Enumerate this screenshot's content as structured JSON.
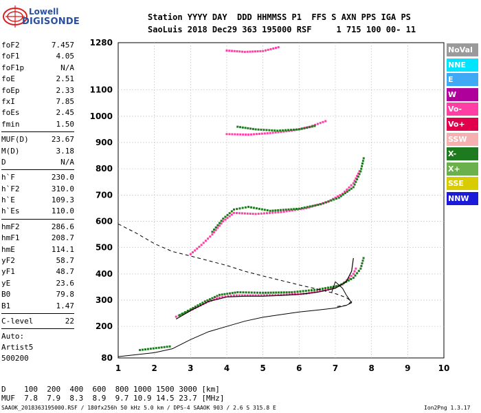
{
  "logo": {
    "line1": "Lowell",
    "line2": "DIGISONDE"
  },
  "header": {
    "line1": "Station YYYY DAY  DDD HHMMSS P1  FFS S AXN PPS IGA PS",
    "line2": "SaoLuis 2018 Dec29 363 195000 RSF     1 715 100 00- 11"
  },
  "params_group1": [
    {
      "k": "foF2",
      "v": "7.457"
    },
    {
      "k": "foF1",
      "v": "4.05"
    },
    {
      "k": "foF1p",
      "v": "N/A"
    },
    {
      "k": "foE",
      "v": "2.51"
    },
    {
      "k": "foEp",
      "v": "2.33"
    },
    {
      "k": "fxI",
      "v": "7.85"
    },
    {
      "k": "foEs",
      "v": "2.45"
    },
    {
      "k": "fmin",
      "v": "1.50"
    }
  ],
  "params_group2": [
    {
      "k": "MUF(D)",
      "v": "23.67"
    },
    {
      "k": "M(D)",
      "v": "3.18"
    },
    {
      "k": "D",
      "v": "N/A"
    }
  ],
  "params_group3": [
    {
      "k": "h`F",
      "v": "230.0"
    },
    {
      "k": "h`F2",
      "v": "310.0"
    },
    {
      "k": "h`E",
      "v": "109.3"
    },
    {
      "k": "h`Es",
      "v": "110.0"
    }
  ],
  "params_group4": [
    {
      "k": "hmF2",
      "v": "286.6"
    },
    {
      "k": "hmF1",
      "v": "208.7"
    },
    {
      "k": "hmE",
      "v": "114.1"
    },
    {
      "k": "yF2",
      "v": "58.7"
    },
    {
      "k": "yF1",
      "v": "48.7"
    },
    {
      "k": "yE",
      "v": "23.6"
    },
    {
      "k": "B0",
      "v": "79.8"
    },
    {
      "k": "B1",
      "v": "1.47"
    }
  ],
  "clevel": {
    "k": "C-level",
    "v": "22"
  },
  "autoscale": [
    "Auto:",
    "Artist5",
    "500200"
  ],
  "legend": [
    {
      "label": "NoVal",
      "color": "#9a9a9a"
    },
    {
      "label": "NNE",
      "color": "#00e5ff"
    },
    {
      "label": "E",
      "color": "#3fa9f5"
    },
    {
      "label": "W",
      "color": "#b0009b"
    },
    {
      "label": "Vo-",
      "color": "#ff3fa4"
    },
    {
      "label": "Vo+",
      "color": "#e0004b"
    },
    {
      "label": "SSW",
      "color": "#f7b0b0"
    },
    {
      "label": "X-",
      "color": "#1e7a1e"
    },
    {
      "label": "X+",
      "color": "#6ab04c"
    },
    {
      "label": "SSE",
      "color": "#d8cc00"
    },
    {
      "label": "NNW",
      "color": "#1a1ad8"
    }
  ],
  "dmuf": {
    "d_line": "D    100  200  400  600  800 1000 1500 3000 [km]",
    "muf_line": "MUF  7.8  7.9  8.3  8.9  9.7 10.9 14.5 23.7 [MHz]"
  },
  "footer": {
    "left": "SAAOK_2018363195000.RSF / 180fx256h 50 kHz 5.0 km / DPS-4 SAAOK 903 / 2.6 S 315.8 E",
    "right": "Ion2Png 1.3.17"
  },
  "chart_data": {
    "type": "scatter",
    "x_ticks": [
      "1",
      "2",
      "3",
      "4",
      "5",
      "6",
      "7",
      "8",
      "9",
      "10"
    ],
    "y_ticks": [
      "80",
      "200",
      "300",
      "400",
      "500",
      "600",
      "700",
      "800",
      "900",
      "1000",
      "1100",
      "1280"
    ],
    "xlim": [
      1,
      10
    ],
    "ylim": [
      80,
      1280
    ],
    "grid": true,
    "series": [
      {
        "color_key": "Vo-",
        "trace": "F2 O-trace",
        "points": [
          [
            2.6,
            237
          ],
          [
            2.9,
            255
          ],
          [
            3.2,
            275
          ],
          [
            3.5,
            295
          ],
          [
            3.8,
            310
          ],
          [
            4.2,
            318
          ],
          [
            4.8,
            318
          ],
          [
            5.5,
            320
          ],
          [
            6.2,
            325
          ],
          [
            6.8,
            340
          ],
          [
            7.2,
            360
          ],
          [
            7.5,
            400
          ],
          [
            7.6,
            430
          ]
        ]
      },
      {
        "color_key": "X-",
        "trace": "F2 X-trace",
        "points": [
          [
            2.7,
            243
          ],
          [
            3.0,
            265
          ],
          [
            3.4,
            295
          ],
          [
            3.8,
            320
          ],
          [
            4.3,
            330
          ],
          [
            5.0,
            328
          ],
          [
            5.8,
            330
          ],
          [
            6.5,
            340
          ],
          [
            7.1,
            355
          ],
          [
            7.5,
            385
          ],
          [
            7.7,
            420
          ],
          [
            7.8,
            470
          ]
        ]
      },
      {
        "color_key": "Vo-",
        "trace": "2F O-trace",
        "points": [
          [
            3.0,
            475
          ],
          [
            3.3,
            510
          ],
          [
            3.6,
            550
          ],
          [
            3.9,
            600
          ],
          [
            4.2,
            632
          ],
          [
            4.8,
            628
          ],
          [
            5.5,
            635
          ],
          [
            6.2,
            650
          ],
          [
            6.8,
            675
          ],
          [
            7.2,
            705
          ],
          [
            7.5,
            745
          ],
          [
            7.7,
            800
          ]
        ]
      },
      {
        "color_key": "X-",
        "trace": "2F X-trace",
        "points": [
          [
            3.6,
            560
          ],
          [
            3.9,
            610
          ],
          [
            4.2,
            645
          ],
          [
            4.6,
            655
          ],
          [
            5.2,
            640
          ],
          [
            6.0,
            648
          ],
          [
            6.6,
            665
          ],
          [
            7.1,
            690
          ],
          [
            7.5,
            730
          ],
          [
            7.7,
            790
          ],
          [
            7.8,
            850
          ]
        ]
      },
      {
        "color_key": "Vo-",
        "trace": "3F O-trace",
        "points": [
          [
            4.0,
            932
          ],
          [
            4.6,
            930
          ],
          [
            5.2,
            936
          ],
          [
            5.8,
            945
          ],
          [
            6.3,
            960
          ],
          [
            6.8,
            985
          ]
        ]
      },
      {
        "color_key": "X-",
        "trace": "3F X-trace",
        "points": [
          [
            4.3,
            960
          ],
          [
            4.8,
            950
          ],
          [
            5.4,
            945
          ],
          [
            6.0,
            950
          ],
          [
            6.5,
            965
          ]
        ]
      },
      {
        "color_key": "Vo-",
        "trace": "4F O-trace",
        "points": [
          [
            4.0,
            1250
          ],
          [
            4.5,
            1245
          ],
          [
            5.0,
            1248
          ],
          [
            5.5,
            1265
          ]
        ]
      },
      {
        "color_key": "X-",
        "trace": "E X-trace",
        "points": [
          [
            1.6,
            110
          ],
          [
            1.9,
            115
          ],
          [
            2.2,
            120
          ],
          [
            2.5,
            125
          ]
        ]
      }
    ],
    "profile_line": [
      [
        1.0,
        85
      ],
      [
        2.0,
        100
      ],
      [
        2.5,
        115
      ],
      [
        3.0,
        150
      ],
      [
        3.5,
        180
      ],
      [
        4.0,
        200
      ],
      [
        4.5,
        220
      ],
      [
        5.0,
        235
      ],
      [
        5.5,
        245
      ],
      [
        6.0,
        255
      ],
      [
        6.5,
        262
      ],
      [
        7.0,
        270
      ],
      [
        7.3,
        280
      ],
      [
        7.45,
        290
      ],
      [
        7.3,
        320
      ],
      [
        7.2,
        345
      ],
      [
        7.0,
        370
      ],
      [
        6.9,
        330
      ]
    ],
    "ordinary_fit": [
      [
        2.6,
        228
      ],
      [
        3.0,
        260
      ],
      [
        3.5,
        295
      ],
      [
        4.0,
        312
      ],
      [
        4.5,
        315
      ],
      [
        5.0,
        315
      ],
      [
        5.5,
        318
      ],
      [
        6.0,
        322
      ],
      [
        6.5,
        330
      ],
      [
        7.0,
        345
      ],
      [
        7.3,
        370
      ],
      [
        7.45,
        410
      ],
      [
        7.5,
        460
      ]
    ],
    "muf_dashed": [
      [
        1.0,
        590
      ],
      [
        1.5,
        555
      ],
      [
        2.0,
        515
      ],
      [
        2.5,
        485
      ],
      [
        3.0,
        468
      ],
      [
        3.5,
        450
      ],
      [
        4.0,
        432
      ],
      [
        4.5,
        410
      ],
      [
        5.0,
        392
      ],
      [
        5.5,
        375
      ],
      [
        6.0,
        358
      ],
      [
        6.5,
        342
      ],
      [
        7.0,
        325
      ],
      [
        7.3,
        310
      ],
      [
        7.45,
        295
      ],
      [
        7.3,
        280
      ],
      [
        7.0,
        275
      ]
    ]
  }
}
